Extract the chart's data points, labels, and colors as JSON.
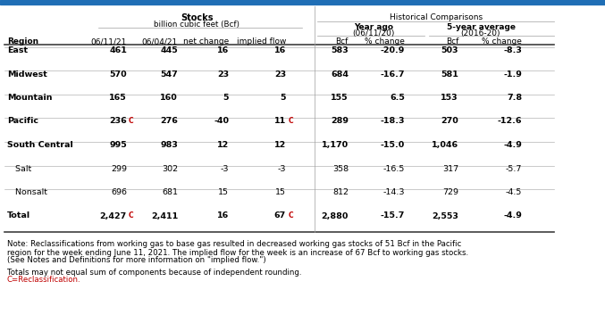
{
  "rows": [
    {
      "region": "East",
      "bold": true,
      "indent": false,
      "v1": "461",
      "c1": false,
      "v2": "445",
      "v3": "16",
      "v4": "16",
      "c4": false,
      "v5": "583",
      "v6": "-20.9",
      "v7": "503",
      "v8": "-8.3"
    },
    {
      "region": "Midwest",
      "bold": true,
      "indent": false,
      "v1": "570",
      "c1": false,
      "v2": "547",
      "v3": "23",
      "v4": "23",
      "c4": false,
      "v5": "684",
      "v6": "-16.7",
      "v7": "581",
      "v8": "-1.9"
    },
    {
      "region": "Mountain",
      "bold": true,
      "indent": false,
      "v1": "165",
      "c1": false,
      "v2": "160",
      "v3": "5",
      "v4": "5",
      "c4": false,
      "v5": "155",
      "v6": "6.5",
      "v7": "153",
      "v8": "7.8"
    },
    {
      "region": "Pacific",
      "bold": true,
      "indent": false,
      "v1": "236",
      "c1": true,
      "v2": "276",
      "v3": "-40",
      "v4": "11",
      "c4": true,
      "v5": "289",
      "v6": "-18.3",
      "v7": "270",
      "v8": "-12.6"
    },
    {
      "region": "South Central",
      "bold": true,
      "indent": false,
      "v1": "995",
      "c1": false,
      "v2": "983",
      "v3": "12",
      "v4": "12",
      "c4": false,
      "v5": "1,170",
      "v6": "-15.0",
      "v7": "1,046",
      "v8": "-4.9"
    },
    {
      "region": "Salt",
      "bold": false,
      "indent": true,
      "v1": "299",
      "c1": false,
      "v2": "302",
      "v3": "-3",
      "v4": "-3",
      "c4": false,
      "v5": "358",
      "v6": "-16.5",
      "v7": "317",
      "v8": "-5.7"
    },
    {
      "region": "Nonsalt",
      "bold": false,
      "indent": true,
      "v1": "696",
      "c1": false,
      "v2": "681",
      "v3": "15",
      "v4": "15",
      "c4": false,
      "v5": "812",
      "v6": "-14.3",
      "v7": "729",
      "v8": "-4.5"
    },
    {
      "region": "Total",
      "bold": true,
      "indent": false,
      "v1": "2,427",
      "c1": true,
      "v2": "2,411",
      "v3": "16",
      "v4": "67",
      "c4": true,
      "v5": "2,880",
      "v6": "-15.7",
      "v7": "2,553",
      "v8": "-4.9"
    }
  ],
  "note_text1": "Note: Reclassifications from working gas to base gas resulted in decreased working gas stocks of 51 Bcf in the Pacific",
  "note_text2": "region for the week ending June 11, 2021. The implied flow for the week is an increase of 67 Bcf to working gas stocks.",
  "note_text3": "(See Notes and Definitions for more information on \"implied flow.\")",
  "totals_note": "Totals may not equal sum of components because of independent rounding.",
  "c_note": "C=Reclassification.",
  "top_bar_color": "#1f6eb5",
  "red_color": "#c00000",
  "dark_line_color": "#404040",
  "light_line_color": "#a0a0a0"
}
